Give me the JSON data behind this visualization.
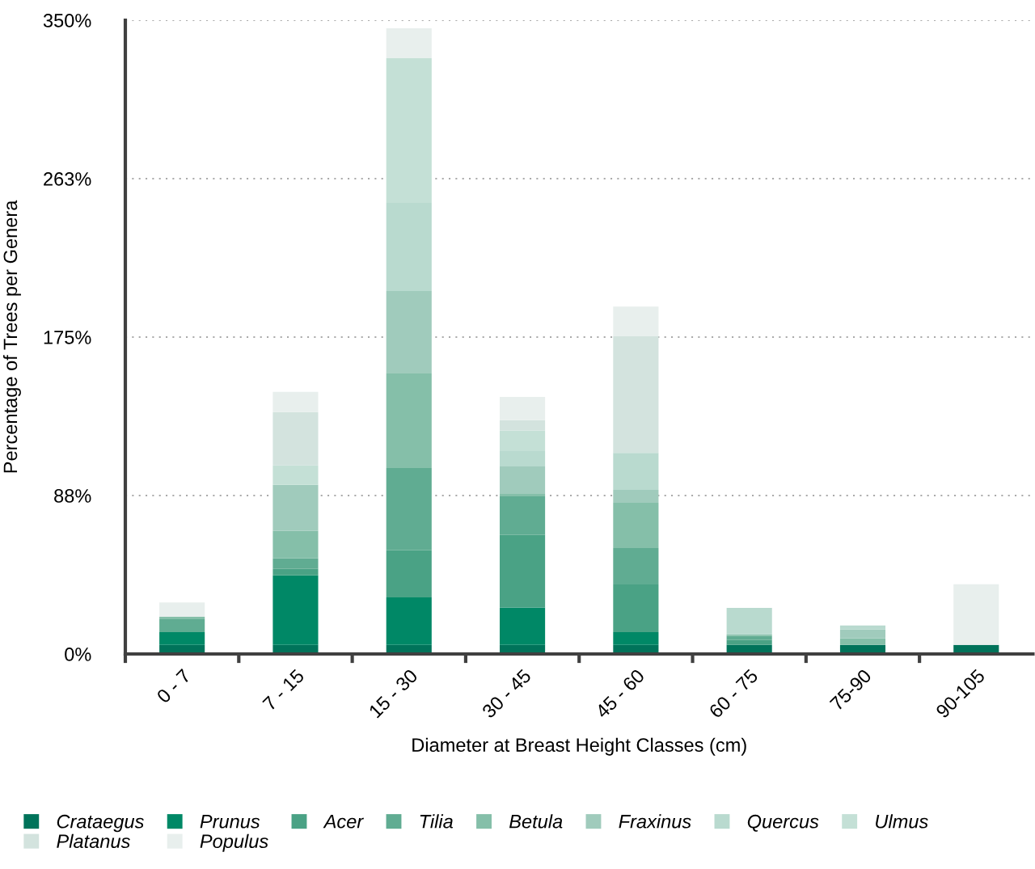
{
  "chart_data": {
    "type": "bar",
    "stacked": true,
    "xlabel": "Diameter at Breast Height Classes (cm)",
    "ylabel": "Percentage of Trees per Genera",
    "categories": [
      "0 - 7",
      "7 - 15",
      "15 - 30",
      "30 - 45",
      "45 - 60",
      "60 - 75",
      "75-90",
      "90-105"
    ],
    "series": [
      {
        "name": "Crataegus",
        "color": "#00735a",
        "values": [
          5,
          5,
          5,
          5,
          5,
          5,
          5,
          5
        ]
      },
      {
        "name": "Prunus",
        "color": "#008866",
        "values": [
          7.1,
          38.4,
          26.3,
          20.7,
          7.1,
          0,
          0,
          0
        ]
      },
      {
        "name": "Acer",
        "color": "#4aa285",
        "values": [
          0,
          3.6,
          25.9,
          40,
          26.3,
          2.7,
          0,
          0
        ]
      },
      {
        "name": "Tilia",
        "color": "#60ac92",
        "values": [
          7.1,
          5.8,
          45.5,
          21.4,
          20.1,
          2.2,
          0,
          0
        ]
      },
      {
        "name": "Betula",
        "color": "#85bfa9",
        "values": [
          1.3,
          15.2,
          52.2,
          1.3,
          25,
          0.9,
          3.7,
          0
        ]
      },
      {
        "name": "Fraxinus",
        "color": "#a0cbbc",
        "values": [
          0,
          25.4,
          45.5,
          15.2,
          7.1,
          0,
          4.8,
          0
        ]
      },
      {
        "name": "Quercus",
        "color": "#b9dacf",
        "values": [
          0,
          0,
          48.7,
          8.5,
          20.5,
          14.7,
          2.2,
          0
        ]
      },
      {
        "name": "Ulmus",
        "color": "#c4e0d6",
        "values": [
          0,
          10.7,
          79.9,
          11.2,
          0,
          0,
          0,
          0
        ]
      },
      {
        "name": "Platanus",
        "color": "#d3e3de",
        "values": [
          0,
          29.5,
          0,
          5.8,
          64.3,
          0,
          0,
          0
        ]
      },
      {
        "name": "Populus",
        "color": "#e8efed",
        "values": [
          8,
          11.2,
          16.5,
          12.9,
          16.5,
          0,
          0,
          33.5
        ]
      }
    ],
    "ylim": [
      0,
      350
    ],
    "yticks": [
      {
        "value": 0,
        "label": "0%"
      },
      {
        "value": 87.5,
        "label": "88%"
      },
      {
        "value": 175,
        "label": "175%"
      },
      {
        "value": 262.5,
        "label": "263%"
      },
      {
        "value": 350,
        "label": "350%"
      }
    ],
    "grid": "y",
    "legend": "bottom"
  }
}
